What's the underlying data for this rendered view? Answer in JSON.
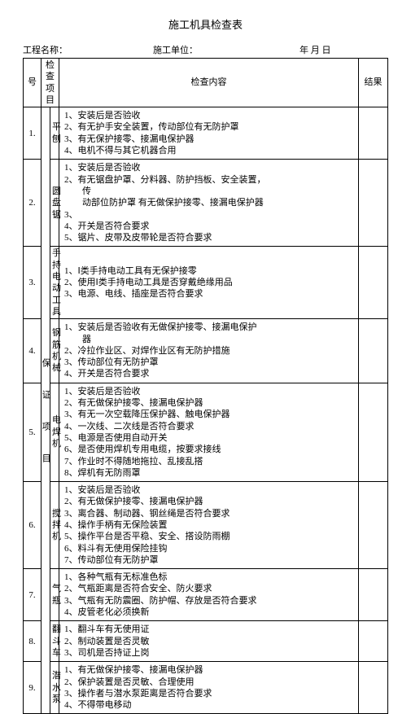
{
  "title": "施工机具检查表",
  "header": {
    "project_label": "工程名称：",
    "unit_label": "施工单位：",
    "date_label": "年  月  日"
  },
  "columns": {
    "num": "号",
    "project": "检查项目",
    "content": "检查内容",
    "result": "结果"
  },
  "vertical_label": "保   证   项   目",
  "rows": [
    {
      "num": "1.",
      "item": "平刨",
      "lines": [
        "1、安装后是否验收",
        "2、有无护手安全装置，传动部位有无防护罩",
        "3、有无保护接零、接漏电保护器",
        "4、电机不得与其它机器合用"
      ]
    },
    {
      "num": "2.",
      "item": "圆盘锯",
      "lines": [
        "1、安装后是否验收",
        "2、有无锯盘护罩、分料器、防护挡板、安全装置，",
        {
          "indent": true,
          "text": "传"
        },
        {
          "indent": true,
          "text": "动部位防护罩 有无做保护接零、接漏电保护器"
        },
        "3、",
        "4、开关是否符合要求",
        "5、锯片、皮带及皮带轮是否符合要求"
      ]
    },
    {
      "num": "3.",
      "item": "手持电动工具",
      "lines": [
        "1、Ⅰ类手持电动工具有无保护接零",
        "2、使用Ⅰ类手持电动工具是否穿戴绝缘用品",
        "3、电源、电线、插座是否符合要求"
      ]
    },
    {
      "num": "4.",
      "item": "钢筋机械",
      "lines": [
        "1、安装后是否验收有无做保护接零、接漏电保护",
        {
          "indent": true,
          "text": "器"
        },
        "2、冷拉作业区、对焊作业区有无防护措施",
        "3、传动部位有无防护罩",
        "4、开关是否符合要求"
      ]
    },
    {
      "num": "5.",
      "item": "电焊机",
      "lines": [
        "1、安装后是否验收",
        "2、有无做保护接零、接漏电保护器",
        "3、有无一次空载降压保护器、触电保护器",
        "4、一次线、二次线是否符合要求",
        "5、电源是否使用自动开关",
        "6、是否使用焊机专用电缆，按要求接线",
        "7、作业时不得随地拖拉、乱接乱搭",
        "8、焊机有无防雨罩"
      ]
    },
    {
      "num": "6.",
      "item": "搅拌机",
      "lines": [
        "1、安装后是否验收",
        "2、有无做保护接零、接漏电保护器",
        "3、离合器、制动器、钢丝绳是否符合要求",
        "4、操作手柄有无保险装置",
        "5、操作平台是否平稳、安全、搭设防雨棚",
        "6、料斗有无使用保险挂钩",
        "7、传动部位有无防护罩"
      ]
    },
    {
      "num": "7.",
      "item": "气瓶",
      "lines": [
        "1、各种气瓶有无标准色标",
        "2、气瓶距离是否符合安全、防火要求",
        "3、气瓶有无防震圈、防护帽、存放是否符合要求",
        "4、皮管老化必须换新"
      ]
    },
    {
      "num": "8.",
      "item": "翻斗车",
      "lines": [
        "1、翻斗车有无使用证",
        "2、制动装置是否灵敏",
        "3、司机是否持证上岗"
      ]
    },
    {
      "num": "9.",
      "item": "潜水泵",
      "lines": [
        "1、有无做保护接零、接漏电保护器",
        "2、保护装置是否灵敏、合理使用",
        "3、操作者与潜水泵距离是否符合要求",
        "4、不得带电移动"
      ]
    }
  ]
}
